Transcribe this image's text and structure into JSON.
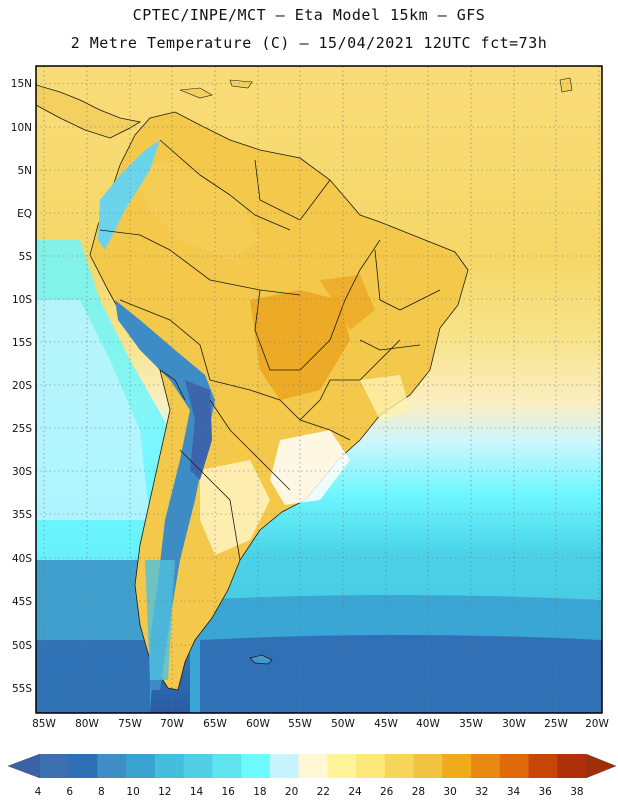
{
  "title": {
    "line1": "CPTEC/INPE/MCT –  Eta Model 15km – GFS",
    "line2": "2 Metre Temperature (C) – 15/04/2021 12UTC fct=73h"
  },
  "map": {
    "lat_labels": [
      "15N",
      "10N",
      "5N",
      "EQ",
      "5S",
      "10S",
      "15S",
      "20S",
      "25S",
      "30S",
      "35S",
      "40S",
      "45S",
      "50S",
      "55S"
    ],
    "lon_labels": [
      "85W",
      "80W",
      "75W",
      "70W",
      "65W",
      "60W",
      "55W",
      "50W",
      "45W",
      "40W",
      "35W",
      "30W",
      "25W",
      "20W"
    ]
  },
  "colorbar": {
    "ticks": [
      "4",
      "6",
      "8",
      "10",
      "12",
      "14",
      "16",
      "18",
      "20",
      "22",
      "24",
      "26",
      "28",
      "30",
      "32",
      "34",
      "36",
      "38"
    ],
    "colors": [
      "#3b6fb0",
      "#2f6fb5",
      "#3f8ec6",
      "#3aa3d2",
      "#45bddc",
      "#52cfe6",
      "#5fe3ef",
      "#6dfaff",
      "#c8f4ff",
      "#fff8d4",
      "#fff39a",
      "#fde67a",
      "#f7d55a",
      "#f1c33f",
      "#efab1a",
      "#e88a12",
      "#de6a0a",
      "#c74505",
      "#b0300a"
    ],
    "left_color": "#3a62a8",
    "right_color": "#a32d06"
  }
}
